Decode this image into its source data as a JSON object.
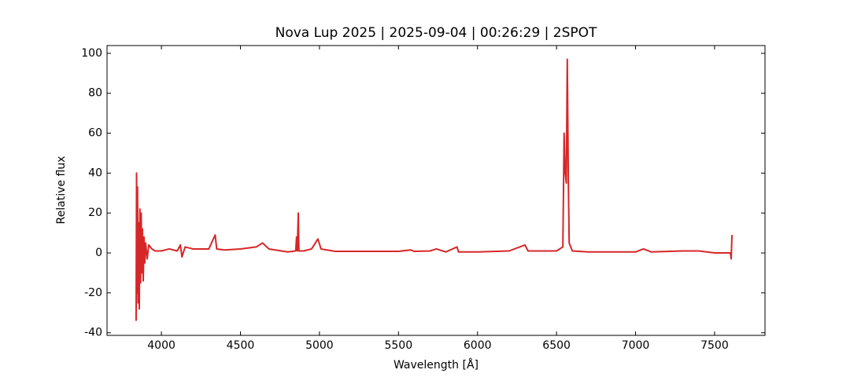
{
  "chart_data": {
    "type": "line",
    "title": "Nova Lup 2025 | 2025-09-04 | 00:26:29 | 2SPOT",
    "x_label": "Wavelength [Å]",
    "y_label": "Relative flux",
    "x": [
      3840,
      3843,
      3846,
      3849,
      3852,
      3856,
      3860,
      3864,
      3868,
      3872,
      3876,
      3880,
      3885,
      3890,
      3895,
      3900,
      3910,
      3920,
      3940,
      3960,
      4000,
      4050,
      4100,
      4120,
      4130,
      4150,
      4200,
      4300,
      4340,
      4350,
      4400,
      4500,
      4600,
      4640,
      4680,
      4800,
      4850,
      4855,
      4860,
      4866,
      4870,
      4900,
      4950,
      4990,
      5010,
      5100,
      5500,
      5577,
      5600,
      5700,
      5740,
      5800,
      5870,
      5880,
      6000,
      6200,
      6300,
      6320,
      6500,
      6540,
      6548,
      6555,
      6562,
      6568,
      6575,
      6580,
      6600,
      6700,
      7000,
      7050,
      7100,
      7300,
      7400,
      7500,
      7600,
      7605,
      7610
    ],
    "series": [
      {
        "name": "Nova Lup 2025",
        "color": "#d62728",
        "values": [
          -34,
          40,
          -20,
          33,
          -25,
          15,
          -28,
          22,
          -15,
          20,
          -10,
          12,
          -14,
          8,
          -5,
          5,
          -3,
          4,
          2,
          1,
          1,
          2,
          1,
          4,
          -2,
          3,
          2,
          2,
          9,
          2,
          1.5,
          2,
          3,
          5,
          2,
          0.5,
          1,
          8,
          1,
          20,
          1,
          1,
          2,
          7,
          2,
          0.8,
          0.8,
          1.5,
          0.8,
          1,
          2,
          0.5,
          3,
          0.5,
          0.5,
          1,
          4,
          1,
          1,
          3,
          60,
          40,
          35,
          97,
          35,
          5,
          1,
          0.5,
          0.5,
          2,
          0.5,
          1,
          1,
          0,
          0,
          -3,
          9
        ]
      }
    ],
    "xlim": [
      3656,
      7819
    ],
    "ylim": [
      -41.3,
      103.9
    ],
    "xticks": [
      4000,
      4500,
      5000,
      5500,
      6000,
      6500,
      7000,
      7500
    ],
    "yticks": [
      -40,
      -20,
      0,
      20,
      40,
      60,
      80,
      100
    ],
    "grid": false
  }
}
